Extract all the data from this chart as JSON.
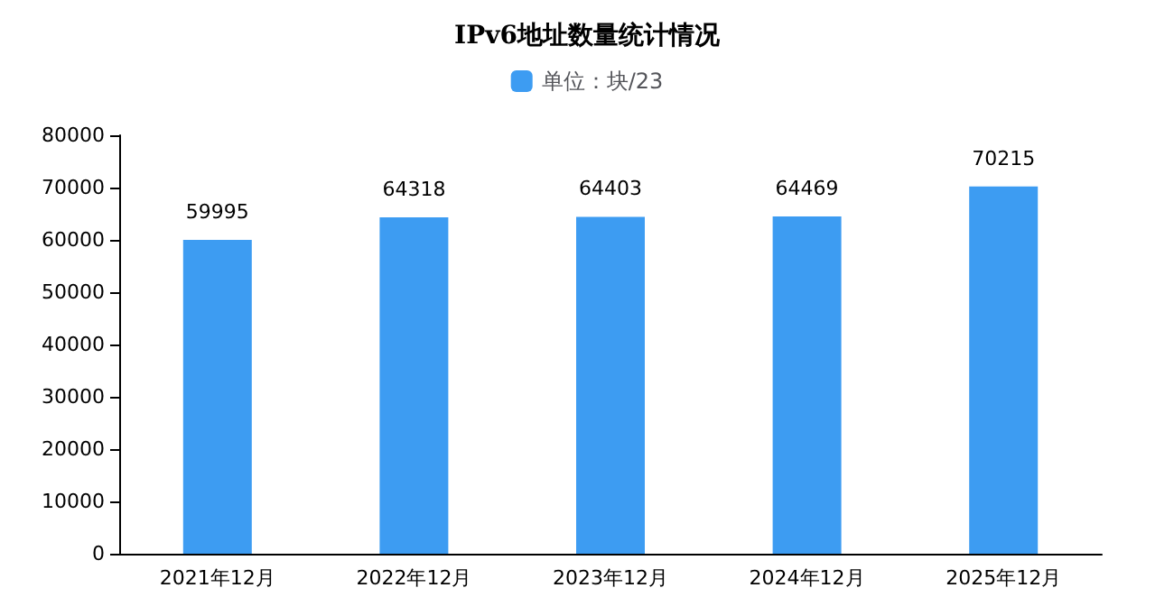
{
  "chart_data": {
    "type": "bar",
    "title": "IPv6地址数量统计情况",
    "categories": [
      "2021年12月",
      "2022年12月",
      "2023年12月",
      "2024年12月",
      "2025年12月"
    ],
    "series": [
      {
        "name": "单位：块/23",
        "color": "#3d9cf2",
        "values": [
          59995,
          64318,
          64403,
          64469,
          70215
        ]
      }
    ],
    "ylim": [
      0,
      80000
    ],
    "yticks": [
      0,
      10000,
      20000,
      30000,
      40000,
      50000,
      60000,
      70000,
      80000
    ],
    "grid": false,
    "legend": "top",
    "data_labels": true
  }
}
